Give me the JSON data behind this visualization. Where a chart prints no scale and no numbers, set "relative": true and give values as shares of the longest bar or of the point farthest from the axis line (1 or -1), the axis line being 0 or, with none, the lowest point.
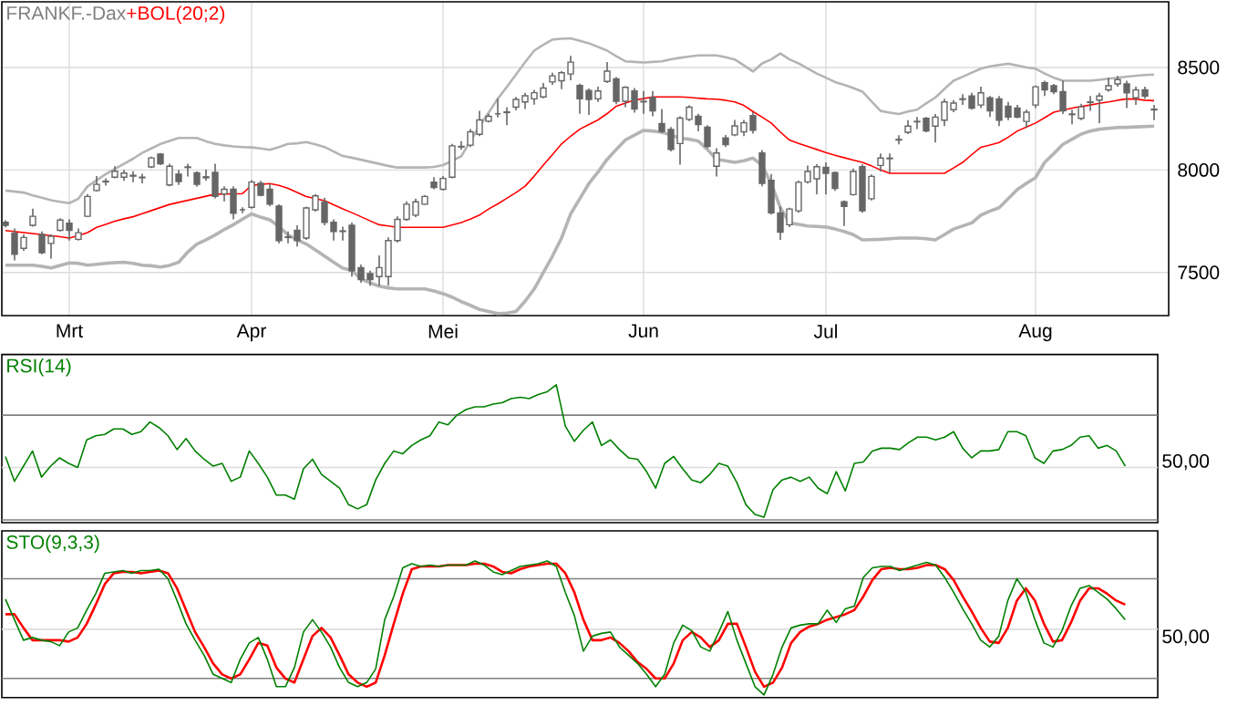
{
  "chart_data": [
    {
      "type": "candlestick",
      "title": "FRANKF.-Dax",
      "color": "#666666",
      "categories": [
        null,
        null,
        null,
        null,
        null,
        null,
        null,
        "Mrt",
        null,
        null,
        null,
        null,
        null,
        null,
        null,
        null,
        null,
        null,
        null,
        null,
        null,
        null,
        null,
        null,
        null,
        null,
        null,
        "Apr",
        null,
        null,
        null,
        null,
        null,
        null,
        null,
        null,
        null,
        null,
        null,
        null,
        null,
        null,
        null,
        null,
        null,
        null,
        null,
        null,
        "Mei",
        null,
        null,
        null,
        null,
        null,
        null,
        null,
        null,
        null,
        null,
        null,
        null,
        null,
        null,
        null,
        null,
        null,
        null,
        null,
        null,
        null,
        "Jun",
        null,
        null,
        null,
        null,
        null,
        null,
        null,
        null,
        null,
        null,
        null,
        null,
        null,
        null,
        null,
        null,
        null,
        null,
        null,
        "Jul",
        null,
        null,
        null,
        null,
        null,
        null,
        null,
        null,
        null,
        null,
        null,
        null,
        null,
        null,
        null,
        null,
        null,
        null,
        null,
        null,
        null,
        null,
        "Aug",
        null,
        null,
        null,
        null,
        null,
        null,
        null,
        null,
        null,
        null,
        null,
        null,
        null
      ],
      "ohlc": [
        [
          7745,
          7755,
          7720,
          7730
        ],
        [
          7692,
          7715,
          7559,
          7589
        ],
        [
          7618,
          7686,
          7606,
          7671
        ],
        [
          7730,
          7812,
          7724,
          7774
        ],
        [
          7686,
          7700,
          7589,
          7597
        ],
        [
          7642,
          7686,
          7568,
          7677
        ],
        [
          7706,
          7765,
          7700,
          7756
        ],
        [
          7741,
          7759,
          7656,
          7706
        ],
        [
          7662,
          7715,
          7656,
          7694
        ],
        [
          7774,
          7883,
          7771,
          7871
        ],
        [
          7900,
          7970,
          7895,
          7930
        ],
        [
          7942,
          7959,
          7924,
          7945
        ],
        [
          7965,
          8018,
          7959,
          7994
        ],
        [
          7965,
          8000,
          7947,
          7985
        ],
        [
          7970,
          7994,
          7941,
          7974
        ],
        [
          7962,
          7982,
          7935,
          7965
        ],
        [
          8015,
          8065,
          8009,
          8059
        ],
        [
          8077,
          8083,
          8024,
          8030
        ],
        [
          7927,
          8030,
          7921,
          8018
        ],
        [
          7980,
          8000,
          7927,
          7944
        ],
        [
          8012,
          8030,
          7968,
          8015
        ],
        [
          7986,
          7994,
          7918,
          7930
        ],
        [
          7967,
          8003,
          7947,
          7962
        ],
        [
          7988,
          8030,
          7862,
          7871
        ],
        [
          7883,
          7921,
          7847,
          7906
        ],
        [
          7906,
          7921,
          7759,
          7789
        ],
        [
          7806,
          7818,
          7789,
          7806
        ],
        [
          7818,
          7950,
          7812,
          7941
        ],
        [
          7935,
          7947,
          7871,
          7877
        ],
        [
          7906,
          7935,
          7824,
          7833
        ],
        [
          7824,
          7833,
          7642,
          7656
        ],
        [
          7674,
          7700,
          7642,
          7671
        ],
        [
          7706,
          7730,
          7627,
          7656
        ],
        [
          7668,
          7821,
          7659,
          7815
        ],
        [
          7806,
          7883,
          7797,
          7874
        ],
        [
          7844,
          7865,
          7730,
          7745
        ],
        [
          7745,
          7759,
          7656,
          7700
        ],
        [
          7703,
          7724,
          7656,
          7700
        ],
        [
          7730,
          7744,
          7480,
          7509
        ],
        [
          7524,
          7539,
          7450,
          7465
        ],
        [
          7495,
          7509,
          7436,
          7465
        ],
        [
          7480,
          7583,
          7436,
          7524
        ],
        [
          7480,
          7671,
          7436,
          7656
        ],
        [
          7656,
          7774,
          7647,
          7759
        ],
        [
          7759,
          7847,
          7753,
          7833
        ],
        [
          7780,
          7860,
          7770,
          7845
        ],
        [
          7833,
          7877,
          7830,
          7871
        ],
        [
          7941,
          7965,
          7906,
          7915
        ],
        [
          7906,
          7971,
          7900,
          7959
        ],
        [
          7965,
          8127,
          7959,
          8118
        ],
        [
          8115,
          8141,
          8098,
          8112
        ],
        [
          8121,
          8200,
          8112,
          8186
        ],
        [
          8174,
          8288,
          8165,
          8244
        ],
        [
          8238,
          8274,
          8232,
          8262
        ],
        [
          8274,
          8347,
          8256,
          8274
        ],
        [
          8280,
          8306,
          8218,
          8283
        ],
        [
          8306,
          8356,
          8291,
          8344
        ],
        [
          8332,
          8376,
          8297,
          8362
        ],
        [
          8347,
          8391,
          8318,
          8377
        ],
        [
          8356,
          8424,
          8350,
          8400
        ],
        [
          8429,
          8474,
          8415,
          8459
        ],
        [
          8435,
          8482,
          8394,
          8474
        ],
        [
          8468,
          8556,
          8438,
          8526
        ],
        [
          8412,
          8421,
          8274,
          8347
        ],
        [
          8388,
          8397,
          8268,
          8344
        ],
        [
          8347,
          8406,
          8332,
          8385
        ],
        [
          8432,
          8526,
          8424,
          8482
        ],
        [
          8444,
          8453,
          8321,
          8335
        ],
        [
          8335,
          8409,
          8306,
          8403
        ],
        [
          8385,
          8400,
          8280,
          8297
        ],
        [
          8335,
          8385,
          8274,
          8332
        ],
        [
          8353,
          8385,
          8262,
          8288
        ],
        [
          8226,
          8297,
          8180,
          8188
        ],
        [
          8197,
          8209,
          8091,
          8100
        ],
        [
          8129,
          8262,
          8026,
          8253
        ],
        [
          8247,
          8315,
          8238,
          8306
        ],
        [
          8262,
          8274,
          8188,
          8221
        ],
        [
          8209,
          8218,
          8106,
          8115
        ],
        [
          8018,
          8106,
          7968,
          8083
        ],
        [
          8156,
          8171,
          8112,
          8124
        ],
        [
          8171,
          8244,
          8165,
          8215
        ],
        [
          8186,
          8244,
          8165,
          8230
        ],
        [
          8265,
          8282,
          8177,
          8194
        ],
        [
          8083,
          8097,
          7921,
          7935
        ],
        [
          7950,
          7980,
          7783,
          7791
        ],
        [
          7791,
          7821,
          7659,
          7697
        ],
        [
          7733,
          7816,
          7721,
          7810
        ],
        [
          7801,
          7948,
          7792,
          7940
        ],
        [
          7942,
          8022,
          7934,
          7993
        ],
        [
          7957,
          8028,
          7881,
          8016
        ],
        [
          8013,
          8037,
          7881,
          7984
        ],
        [
          7987,
          7993,
          7898,
          7910
        ],
        [
          7845,
          7851,
          7727,
          7822
        ],
        [
          7880,
          8007,
          7875,
          7993
        ],
        [
          8016,
          8028,
          7792,
          7801
        ],
        [
          7860,
          7978,
          7851,
          7969
        ],
        [
          8022,
          8081,
          7993,
          8058
        ],
        [
          8058,
          8081,
          7987,
          8055
        ],
        [
          8146,
          8170,
          8125,
          8149
        ],
        [
          8184,
          8243,
          8175,
          8214
        ],
        [
          8235,
          8258,
          8199,
          8237
        ],
        [
          8252,
          8258,
          8184,
          8190
        ],
        [
          8214,
          8273,
          8134,
          8258
        ],
        [
          8243,
          8347,
          8214,
          8332
        ],
        [
          8294,
          8341,
          8282,
          8326
        ],
        [
          8344,
          8370,
          8317,
          8347
        ],
        [
          8361,
          8376,
          8294,
          8302
        ],
        [
          8317,
          8406,
          8302,
          8376
        ],
        [
          8352,
          8361,
          8258,
          8288
        ],
        [
          8347,
          8361,
          8214,
          8243
        ],
        [
          8311,
          8332,
          8243,
          8258
        ],
        [
          8302,
          8317,
          8252,
          8258
        ],
        [
          8237,
          8294,
          8205,
          8282
        ],
        [
          8317,
          8412,
          8302,
          8406
        ],
        [
          8426,
          8435,
          8361,
          8391
        ],
        [
          8411,
          8420,
          8370,
          8382
        ],
        [
          8382,
          8435,
          8273,
          8288
        ],
        [
          8273,
          8294,
          8223,
          8270
        ],
        [
          8252,
          8323,
          8243,
          8308
        ],
        [
          8332,
          8361,
          8288,
          8329
        ],
        [
          8341,
          8376,
          8229,
          8361
        ],
        [
          8391,
          8450,
          8382,
          8411
        ],
        [
          8420,
          8459,
          8406,
          8441
        ],
        [
          8420,
          8435,
          8302,
          8376
        ],
        [
          8352,
          8406,
          8317,
          8391
        ],
        [
          8391,
          8406,
          8347,
          8361
        ],
        [
          8296,
          8317,
          8243,
          8293
        ]
      ],
      "series": [
        {
          "name": "+BOL(20;2)",
          "type": "line",
          "color": "#ff0000",
          "values": [
            7705,
            7700,
            7695,
            7690,
            7685,
            7680,
            7675,
            7668,
            7680,
            7695,
            7720,
            7735,
            7750,
            7762,
            7772,
            7787,
            7802,
            7817,
            7832,
            7842,
            7852,
            7862,
            7872,
            7882,
            7883,
            7884,
            7885,
            7925,
            7930,
            7934,
            7925,
            7910,
            7890,
            7870,
            7860,
            7850,
            7830,
            7810,
            7792,
            7772,
            7752,
            7733,
            7727,
            7720,
            7720,
            7720,
            7720,
            7720,
            7720,
            7732,
            7744,
            7760,
            7780,
            7810,
            7835,
            7862,
            7890,
            7921,
            7970,
            8024,
            8075,
            8127,
            8165,
            8199,
            8222,
            8244,
            8275,
            8311,
            8326,
            8341,
            8348,
            8356,
            8356,
            8356,
            8356,
            8354,
            8350,
            8347,
            8345,
            8340,
            8332,
            8315,
            8285,
            8258,
            8229,
            8185,
            8146,
            8130,
            8115,
            8100,
            8085,
            8072,
            8060,
            8048,
            8037,
            8020,
            8000,
            7984,
            7984,
            7984,
            7984,
            7984,
            7984,
            7984,
            8010,
            8037,
            8075,
            8111,
            8122,
            8134,
            8160,
            8190,
            8210,
            8229,
            8255,
            8282,
            8292,
            8302,
            8310,
            8317,
            8325,
            8332,
            8340,
            8347,
            8345,
            8340,
            8338
          ]
        },
        {
          "type": "line",
          "color": "#b4b4b4",
          "values": [
            7900,
            7895,
            7890,
            7876,
            7865,
            7853,
            7845,
            7838,
            7860,
            7920,
            7950,
            7980,
            8005,
            8030,
            8055,
            8083,
            8105,
            8127,
            8142,
            8156,
            8156,
            8156,
            8140,
            8127,
            8120,
            8115,
            8112,
            8110,
            8105,
            8098,
            8112,
            8127,
            8130,
            8136,
            8125,
            8112,
            8090,
            8068,
            8060,
            8050,
            8040,
            8030,
            8020,
            8012,
            8012,
            8012,
            8012,
            8015,
            8024,
            8045,
            8067,
            8140,
            8214,
            8280,
            8347,
            8405,
            8465,
            8525,
            8582,
            8610,
            8636,
            8640,
            8642,
            8630,
            8618,
            8600,
            8582,
            8555,
            8530,
            8527,
            8524,
            8527,
            8530,
            8540,
            8547,
            8553,
            8559,
            8559,
            8559,
            8550,
            8539,
            8510,
            8480,
            8520,
            8539,
            8568,
            8539,
            8520,
            8495,
            8470,
            8450,
            8429,
            8415,
            8400,
            8382,
            8335,
            8288,
            8280,
            8273,
            8285,
            8294,
            8325,
            8353,
            8395,
            8435,
            8455,
            8475,
            8494,
            8505,
            8512,
            8518,
            8510,
            8500,
            8494,
            8470,
            8450,
            8435,
            8435,
            8435,
            8435,
            8440,
            8445,
            8450,
            8455,
            8460,
            8463,
            8465
          ]
        },
        {
          "type": "line",
          "color": "#b4b4b4",
          "values": [
            7536,
            7536,
            7536,
            7536,
            7530,
            7522,
            7535,
            7547,
            7545,
            7536,
            7540,
            7545,
            7548,
            7550,
            7545,
            7536,
            7533,
            7527,
            7535,
            7550,
            7600,
            7639,
            7660,
            7683,
            7710,
            7733,
            7760,
            7786,
            7770,
            7757,
            7725,
            7683,
            7660,
            7639,
            7610,
            7580,
            7550,
            7521,
            7510,
            7469,
            7450,
            7433,
            7425,
            7420,
            7420,
            7420,
            7420,
            7410,
            7397,
            7380,
            7358,
            7340,
            7320,
            7310,
            7300,
            7302,
            7310,
            7360,
            7420,
            7500,
            7580,
            7668,
            7786,
            7860,
            7934,
            7990,
            8052,
            8100,
            8146,
            8170,
            8193,
            8190,
            8184,
            8170,
            8155,
            8150,
            8141,
            8100,
            8052,
            8045,
            8037,
            8045,
            8058,
            8022,
            7934,
            7816,
            7742,
            7735,
            7727,
            7725,
            7722,
            7712,
            7700,
            7685,
            7659,
            7660,
            7662,
            7665,
            7668,
            7668,
            7668,
            7665,
            7659,
            7685,
            7712,
            7727,
            7742,
            7780,
            7800,
            7816,
            7860,
            7905,
            7935,
            7963,
            8037,
            8080,
            8125,
            8150,
            8175,
            8190,
            8199,
            8203,
            8207,
            8208,
            8210,
            8212,
            8214
          ]
        }
      ],
      "ylim": [
        7290,
        8820
      ],
      "yticks": [
        7500,
        8000,
        8500
      ],
      "grid": true
    },
    {
      "type": "line",
      "relative": true,
      "categories": [
        null,
        null,
        null,
        null,
        null,
        null,
        null,
        null,
        null,
        null,
        null,
        null,
        null,
        null,
        null,
        null,
        null,
        null,
        null,
        null,
        null,
        null,
        null,
        null,
        null,
        null,
        null,
        null,
        null,
        null,
        null,
        null,
        null,
        null,
        null,
        null,
        null,
        null,
        null,
        null,
        null,
        null,
        null,
        null,
        null,
        null,
        null,
        null,
        null,
        null,
        null,
        null,
        null,
        null,
        null,
        null,
        null,
        null,
        null,
        null,
        null,
        null,
        null,
        null,
        null,
        null,
        null,
        null,
        null,
        null,
        null,
        null,
        null,
        null,
        null,
        null,
        null,
        null,
        null,
        null,
        null,
        null,
        null,
        null,
        null,
        null,
        null,
        null,
        null,
        null,
        null,
        null,
        null,
        null,
        null,
        null,
        null,
        null,
        null,
        null,
        null,
        null,
        null,
        null,
        null,
        null,
        null,
        null,
        null,
        null,
        null,
        null,
        null,
        null,
        null,
        null,
        null,
        null,
        null,
        null,
        null,
        null,
        null,
        null,
        null,
        null,
        null
      ],
      "series": [
        {
          "name": "RSI(14)",
          "color": "#008000",
          "values": [
            0.48,
            0.3,
            0.41,
            0.52,
            0.33,
            0.41,
            0.47,
            0.43,
            0.4,
            0.6,
            0.63,
            0.64,
            0.68,
            0.68,
            0.64,
            0.66,
            0.73,
            0.69,
            0.63,
            0.53,
            0.61,
            0.52,
            0.46,
            0.41,
            0.43,
            0.3,
            0.33,
            0.52,
            0.43,
            0.33,
            0.2,
            0.2,
            0.17,
            0.39,
            0.46,
            0.35,
            0.3,
            0.25,
            0.13,
            0.1,
            0.13,
            0.31,
            0.43,
            0.52,
            0.5,
            0.56,
            0.6,
            0.63,
            0.73,
            0.71,
            0.78,
            0.82,
            0.84,
            0.84,
            0.86,
            0.87,
            0.9,
            0.91,
            0.9,
            0.93,
            0.95,
            1,
            0.7,
            0.59,
            0.67,
            0.73,
            0.56,
            0.6,
            0.53,
            0.47,
            0.46,
            0.37,
            0.25,
            0.43,
            0.48,
            0.39,
            0.31,
            0.29,
            0.35,
            0.43,
            0.41,
            0.29,
            0.13,
            0.06,
            0.04,
            0.24,
            0.31,
            0.33,
            0.3,
            0.33,
            0.25,
            0.21,
            0.37,
            0.23,
            0.43,
            0.44,
            0.52,
            0.54,
            0.54,
            0.53,
            0.58,
            0.62,
            0.62,
            0.6,
            0.62,
            0.66,
            0.54,
            0.47,
            0.52,
            0.52,
            0.53,
            0.66,
            0.66,
            0.63,
            0.47,
            0.43,
            0.52,
            0.53,
            0.56,
            0.62,
            0.63,
            0.54,
            0.56,
            0.52,
            0.41,
            null,
            null
          ]
        }
      ],
      "ref_lines": [
        {
          "axis": "y",
          "value": 0.78,
          "color": "#808080"
        },
        {
          "axis": "y",
          "value": 0.02,
          "color": "#808080"
        },
        {
          "axis": "y",
          "value": 0.4,
          "color": "#dcdcdc"
        }
      ],
      "annotations": [
        "50,00"
      ]
    },
    {
      "type": "line",
      "relative": true,
      "categories": [
        null,
        null,
        null,
        null,
        null,
        null,
        null,
        null,
        null,
        null,
        null,
        null,
        null,
        null,
        null,
        null,
        null,
        null,
        null,
        null,
        null,
        null,
        null,
        null,
        null,
        null,
        null,
        null,
        null,
        null,
        null,
        null,
        null,
        null,
        null,
        null,
        null,
        null,
        null,
        null,
        null,
        null,
        null,
        null,
        null,
        null,
        null,
        null,
        null,
        null,
        null,
        null,
        null,
        null,
        null,
        null,
        null,
        null,
        null,
        null,
        null,
        null,
        null,
        null,
        null,
        null,
        null,
        null,
        null,
        null,
        null,
        null,
        null,
        null,
        null,
        null,
        null,
        null,
        null,
        null,
        null,
        null,
        null,
        null,
        null,
        null,
        null,
        null,
        null,
        null,
        null,
        null,
        null,
        null,
        null,
        null,
        null,
        null,
        null,
        null,
        null,
        null,
        null,
        null,
        null,
        null,
        null,
        null,
        null,
        null,
        null,
        null,
        null,
        null,
        null,
        null,
        null,
        null,
        null,
        null,
        null,
        null,
        null,
        null,
        null,
        null,
        null
      ],
      "series": [
        {
          "name": "STO(9,3,3)",
          "color": "#008000",
          "values": [
            0.72,
            0.57,
            0.42,
            0.44,
            0.42,
            0.41,
            0.38,
            0.48,
            0.51,
            0.64,
            0.76,
            0.91,
            0.92,
            0.93,
            0.91,
            0.93,
            0.93,
            0.94,
            0.87,
            0.71,
            0.54,
            0.42,
            0.31,
            0.17,
            0.14,
            0.11,
            0.28,
            0.4,
            0.44,
            0.28,
            0.08,
            0.08,
            0.22,
            0.48,
            0.57,
            0.48,
            0.37,
            0.22,
            0.11,
            0.08,
            0.11,
            0.21,
            0.57,
            0.74,
            0.95,
            0.98,
            0.96,
            0.97,
            0.96,
            0.97,
            0.97,
            0.97,
            1,
            0.97,
            0.92,
            0.9,
            0.93,
            0.96,
            0.97,
            0.98,
            1,
            0.96,
            0.77,
            0.6,
            0.34,
            0.45,
            0.47,
            0.48,
            0.37,
            0.31,
            0.25,
            0.17,
            0.08,
            0.17,
            0.4,
            0.53,
            0.49,
            0.37,
            0.34,
            0.48,
            0.63,
            0.42,
            0.25,
            0.08,
            0.02,
            0.17,
            0.37,
            0.51,
            0.53,
            0.54,
            0.54,
            0.64,
            0.55,
            0.65,
            0.67,
            0.88,
            0.95,
            0.96,
            0.96,
            0.93,
            0.95,
            0.97,
            0.99,
            0.97,
            0.88,
            0.77,
            0.65,
            0.54,
            0.42,
            0.37,
            0.45,
            0.71,
            0.87,
            0.77,
            0.57,
            0.4,
            0.37,
            0.49,
            0.67,
            0.8,
            0.82,
            0.77,
            0.72,
            0.65,
            0.57,
            null,
            null
          ]
        },
        {
          "color": "#ff0000",
          "values": [
            0.61,
            0.61,
            0.51,
            0.42,
            0.42,
            0.42,
            0.42,
            0.41,
            0.44,
            0.54,
            0.68,
            0.83,
            0.91,
            0.92,
            0.92,
            0.91,
            0.92,
            0.93,
            0.91,
            0.8,
            0.64,
            0.48,
            0.37,
            0.25,
            0.17,
            0.14,
            0.17,
            0.28,
            0.4,
            0.38,
            0.22,
            0.14,
            0.11,
            0.28,
            0.45,
            0.51,
            0.44,
            0.31,
            0.17,
            0.11,
            0.08,
            0.11,
            0.31,
            0.54,
            0.76,
            0.94,
            0.96,
            0.96,
            0.96,
            0.97,
            0.97,
            0.97,
            0.98,
            0.98,
            0.96,
            0.92,
            0.91,
            0.94,
            0.96,
            0.97,
            0.98,
            0.98,
            0.91,
            0.77,
            0.57,
            0.42,
            0.42,
            0.44,
            0.4,
            0.34,
            0.26,
            0.21,
            0.14,
            0.14,
            0.25,
            0.42,
            0.48,
            0.44,
            0.37,
            0.42,
            0.54,
            0.54,
            0.37,
            0.19,
            0.08,
            0.11,
            0.22,
            0.4,
            0.48,
            0.52,
            0.54,
            0.57,
            0.59,
            0.61,
            0.64,
            0.74,
            0.86,
            0.94,
            0.95,
            0.94,
            0.94,
            0.95,
            0.97,
            0.97,
            0.94,
            0.86,
            0.74,
            0.63,
            0.51,
            0.41,
            0.4,
            0.51,
            0.71,
            0.8,
            0.71,
            0.54,
            0.41,
            0.42,
            0.55,
            0.71,
            0.8,
            0.8,
            0.76,
            0.71,
            0.68,
            null,
            null
          ]
        }
      ],
      "ref_lines": [
        {
          "axis": "y",
          "value": 0.87,
          "color": "#808080"
        },
        {
          "axis": "y",
          "value": 0.14,
          "color": "#808080"
        },
        {
          "axis": "y",
          "value": 0.5,
          "color": "#dcdcdc"
        }
      ],
      "annotations": [
        "50,00"
      ]
    }
  ]
}
